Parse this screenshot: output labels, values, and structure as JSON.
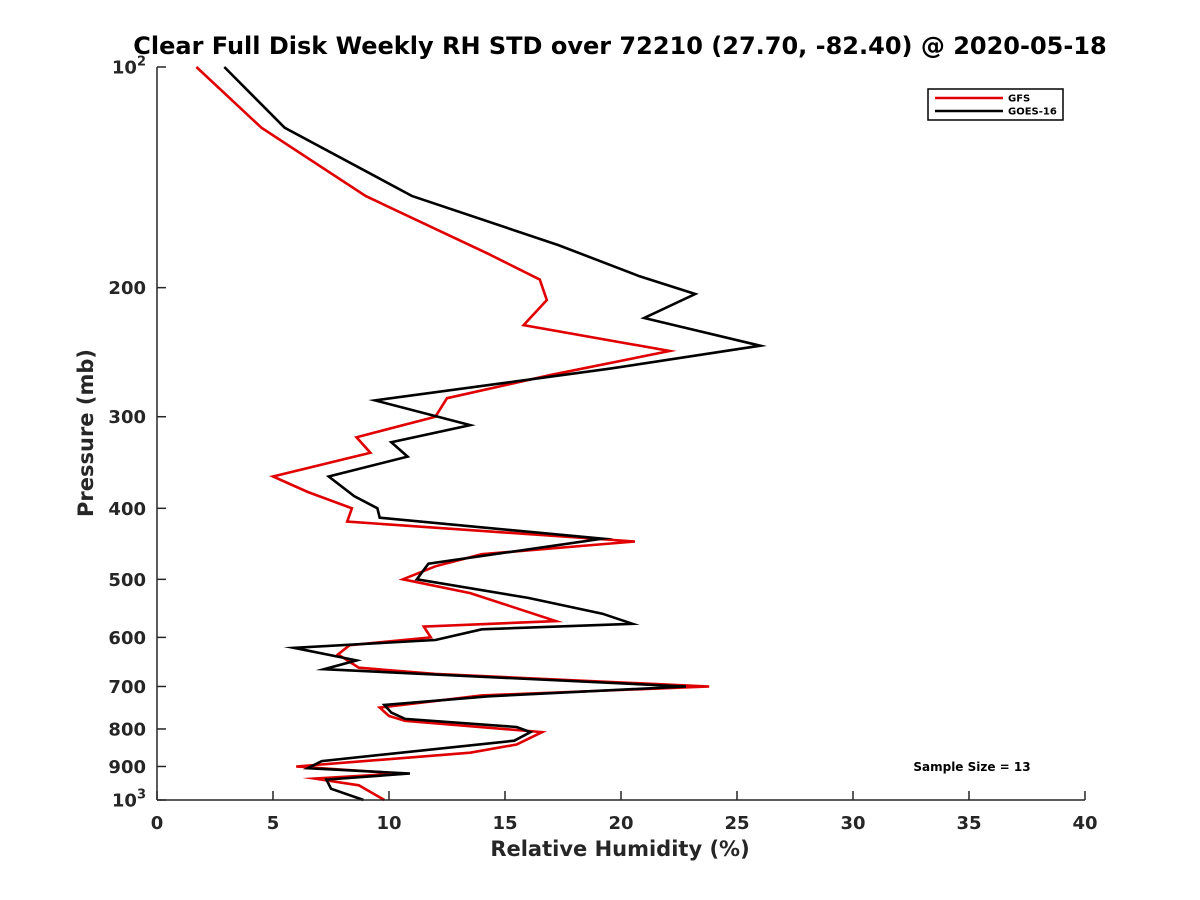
{
  "chart_data": {
    "type": "line",
    "title": "Clear Full Disk Weekly RH STD over 72210 (27.70, -82.40) @ 2020-05-18",
    "xlabel": "Relative Humidity (%)",
    "ylabel": "Pressure (mb)",
    "xlim": [
      0,
      40
    ],
    "ylim": [
      100,
      1000
    ],
    "yscale": "log",
    "y_reversed": true,
    "x_ticks": [
      0,
      5,
      10,
      15,
      20,
      25,
      30,
      35,
      40
    ],
    "y_ticks": [
      {
        "value": 100,
        "base": "10",
        "exp": "2"
      },
      {
        "value": 200,
        "label": "200"
      },
      {
        "value": 300,
        "label": "300"
      },
      {
        "value": 400,
        "label": "400"
      },
      {
        "value": 500,
        "label": "500"
      },
      {
        "value": 600,
        "label": "600"
      },
      {
        "value": 700,
        "label": "700"
      },
      {
        "value": 800,
        "label": "800"
      },
      {
        "value": 900,
        "label": "900"
      },
      {
        "value": 1000,
        "base": "10",
        "exp": "3"
      }
    ],
    "legend_position": "top-right",
    "annotation": "Sample Size = 13",
    "series": [
      {
        "name": "GFS",
        "color": "#e00000",
        "points": [
          [
            1.7,
            100
          ],
          [
            4.5,
            121
          ],
          [
            9.0,
            150
          ],
          [
            14.3,
            180
          ],
          [
            16.5,
            195
          ],
          [
            16.8,
            208
          ],
          [
            15.8,
            225
          ],
          [
            22.1,
            244
          ],
          [
            17.0,
            263
          ],
          [
            12.5,
            283
          ],
          [
            12.0,
            300
          ],
          [
            8.6,
            320
          ],
          [
            9.2,
            336
          ],
          [
            5.0,
            362
          ],
          [
            6.5,
            380
          ],
          [
            8.4,
            400
          ],
          [
            8.2,
            417
          ],
          [
            20.6,
            444
          ],
          [
            14.0,
            462
          ],
          [
            12.0,
            480
          ],
          [
            10.6,
            500
          ],
          [
            13.5,
            522
          ],
          [
            17.2,
            570
          ],
          [
            11.5,
            580
          ],
          [
            11.8,
            600
          ],
          [
            8.3,
            615
          ],
          [
            7.8,
            633
          ],
          [
            8.7,
            660
          ],
          [
            12.0,
            673
          ],
          [
            23.8,
            700
          ],
          [
            14.0,
            720
          ],
          [
            9.6,
            748
          ],
          [
            10.0,
            768
          ],
          [
            10.7,
            780
          ],
          [
            16.6,
            808
          ],
          [
            15.5,
            840
          ],
          [
            13.5,
            862
          ],
          [
            6.0,
            900
          ],
          [
            10.5,
            920
          ],
          [
            6.8,
            935
          ],
          [
            8.7,
            955
          ],
          [
            9.8,
            1000
          ]
        ]
      },
      {
        "name": "GOES-16",
        "color": "#000000",
        "points": [
          [
            2.9,
            100
          ],
          [
            5.5,
            121
          ],
          [
            11.0,
            150
          ],
          [
            17.3,
            175
          ],
          [
            20.8,
            193
          ],
          [
            23.2,
            204
          ],
          [
            21.0,
            220
          ],
          [
            26.0,
            240
          ],
          [
            19.5,
            258
          ],
          [
            9.4,
            285
          ],
          [
            13.5,
            308
          ],
          [
            10.1,
            325
          ],
          [
            10.8,
            340
          ],
          [
            7.4,
            362
          ],
          [
            8.5,
            385
          ],
          [
            9.5,
            400
          ],
          [
            9.6,
            412
          ],
          [
            19.2,
            440
          ],
          [
            11.7,
            476
          ],
          [
            11.2,
            500
          ],
          [
            16.0,
            530
          ],
          [
            19.2,
            557
          ],
          [
            20.5,
            575
          ],
          [
            14.0,
            585
          ],
          [
            12.0,
            605
          ],
          [
            5.9,
            620
          ],
          [
            8.6,
            645
          ],
          [
            7.2,
            663
          ],
          [
            22.8,
            700
          ],
          [
            14.3,
            722
          ],
          [
            9.8,
            742
          ],
          [
            10.1,
            760
          ],
          [
            10.7,
            775
          ],
          [
            15.5,
            795
          ],
          [
            16.1,
            808
          ],
          [
            15.4,
            830
          ],
          [
            7.1,
            885
          ],
          [
            6.5,
            905
          ],
          [
            10.9,
            920
          ],
          [
            7.3,
            938
          ],
          [
            7.5,
            965
          ],
          [
            8.9,
            1000
          ]
        ]
      }
    ]
  }
}
